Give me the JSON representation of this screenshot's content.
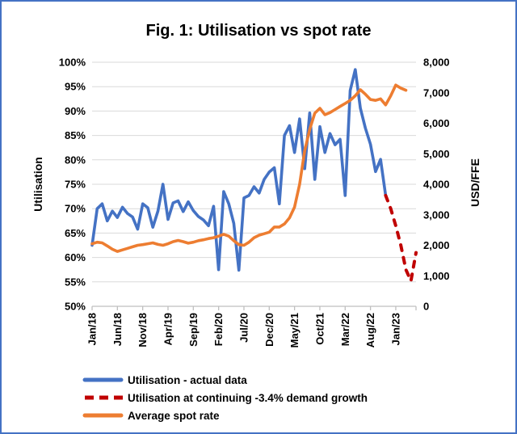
{
  "window": {
    "title": "Fig. 1: Utilisation vs spot rate"
  },
  "chart_data": {
    "type": "line",
    "title": "Fig. 1: Utilisation vs spot rate",
    "n_points": 65,
    "x_label_interval": 5,
    "x_tick_labels": [
      "Jan/18",
      "Jun/18",
      "Nov/18",
      "Apr/19",
      "Sep/19",
      "Feb/20",
      "Jul/20",
      "Dec/20",
      "May/21",
      "Oct/21",
      "Mar/22",
      "Aug/22",
      "Jan/23"
    ],
    "left_axis": {
      "title": "Utilisation",
      "min": 50,
      "max": 100,
      "step": 5,
      "tick_labels": [
        "100%",
        "95%",
        "90%",
        "85%",
        "80%",
        "75%",
        "70%",
        "65%",
        "60%",
        "55%",
        "50%"
      ]
    },
    "right_axis": {
      "title": "USD/FFE",
      "min": 0,
      "max": 8000,
      "step": 1000,
      "tick_labels": [
        "8,000",
        "7,000",
        "6,000",
        "5,000",
        "4,000",
        "3,000",
        "2,000",
        "1,000",
        "0"
      ]
    },
    "grid": "horizontal",
    "legend_position": "bottom-left",
    "colors": {
      "utilisation_actual": "#4472C4",
      "utilisation_projection": "#C00000",
      "spot_rate": "#ED7D31",
      "border": "#4472C4",
      "gridline": "#D9D9D9",
      "axis_line": "#BFBFBF",
      "text": "#000000"
    },
    "series": [
      {
        "name": "Utilisation - actual data",
        "axis": "left",
        "color": "#4472C4",
        "style": "solid",
        "values": [
          62.5,
          70,
          71,
          67.5,
          69.5,
          68.2,
          70.3,
          69,
          68.3,
          65.8,
          71,
          70.2,
          66.2,
          69.5,
          75,
          67.8,
          71.2,
          71.6,
          69.4,
          71.4,
          69.6,
          68.4,
          67.7,
          66.5,
          70.5,
          57.5,
          73.5,
          71,
          67,
          57.4,
          72.2,
          72.7,
          74.5,
          73.2,
          76,
          77.5,
          78.4,
          71,
          85,
          87,
          81.5,
          88.4,
          78.2,
          89.6,
          76,
          86.8,
          81.5,
          85.4,
          83.1,
          84.2,
          72.7,
          94.2,
          98.5,
          90.6,
          86.5,
          83.2,
          77.6,
          80.1,
          72.7,
          null,
          null,
          null,
          null,
          null,
          null
        ]
      },
      {
        "name": "Utilisation at continuing -3.4% demand growth",
        "axis": "left",
        "color": "#C00000",
        "style": "dashed",
        "values": [
          null,
          null,
          null,
          null,
          null,
          null,
          null,
          null,
          null,
          null,
          null,
          null,
          null,
          null,
          null,
          null,
          null,
          null,
          null,
          null,
          null,
          null,
          null,
          null,
          null,
          null,
          null,
          null,
          null,
          null,
          null,
          null,
          null,
          null,
          null,
          null,
          null,
          null,
          null,
          null,
          null,
          null,
          null,
          null,
          null,
          null,
          null,
          null,
          null,
          null,
          null,
          null,
          null,
          null,
          null,
          null,
          null,
          null,
          72.7,
          70,
          66.5,
          62.5,
          57.5,
          55.2,
          61
        ]
      },
      {
        "name": "Average spot rate",
        "axis": "right",
        "color": "#ED7D31",
        "style": "solid",
        "values": [
          2050,
          2100,
          2080,
          1980,
          1870,
          1800,
          1850,
          1900,
          1950,
          2000,
          2020,
          2050,
          2080,
          2030,
          2000,
          2050,
          2120,
          2160,
          2120,
          2070,
          2100,
          2150,
          2180,
          2220,
          2250,
          2300,
          2360,
          2300,
          2150,
          2020,
          2000,
          2100,
          2250,
          2330,
          2380,
          2430,
          2600,
          2600,
          2700,
          2900,
          3250,
          4000,
          5100,
          5800,
          6330,
          6490,
          6280,
          6350,
          6450,
          6550,
          6650,
          6750,
          6900,
          7100,
          6950,
          6780,
          6750,
          6800,
          6600,
          6900,
          7250,
          7150,
          7080,
          null,
          null
        ]
      }
    ]
  }
}
